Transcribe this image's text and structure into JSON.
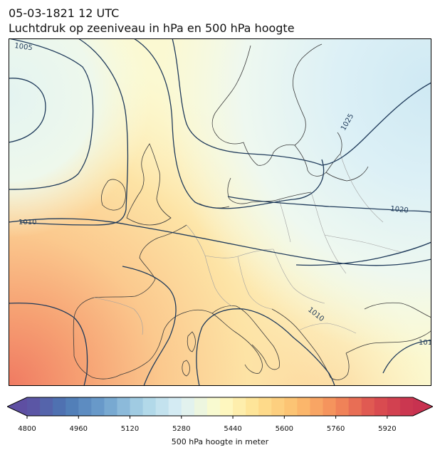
{
  "title_line1": "05-03-1821 12 UTC",
  "title_line2": "Luchtdruk op zeeniveau in hPa en 500 hPa hoogte",
  "colorbar": {
    "label": "500 hPa hoogte in meter",
    "min": 4800,
    "max": 6000,
    "step": 40,
    "ticks": [
      4800,
      4960,
      5120,
      5280,
      5440,
      5600,
      5760,
      5920
    ],
    "extend": "both"
  },
  "isobar_labels": [
    {
      "id": "lbl-1005",
      "text": "1005"
    },
    {
      "id": "lbl-1010-west",
      "text": "1010"
    },
    {
      "id": "lbl-1010-adriatic",
      "text": "1010"
    },
    {
      "id": "lbl-1020",
      "text": "1020"
    },
    {
      "id": "lbl-1025",
      "text": "1025"
    },
    {
      "id": "lbl-101-east",
      "text": "101"
    }
  ],
  "colors": {
    "isobar": "#1f3a5a",
    "coast": "#3a3a3a",
    "border": "#a0a0a0"
  }
}
